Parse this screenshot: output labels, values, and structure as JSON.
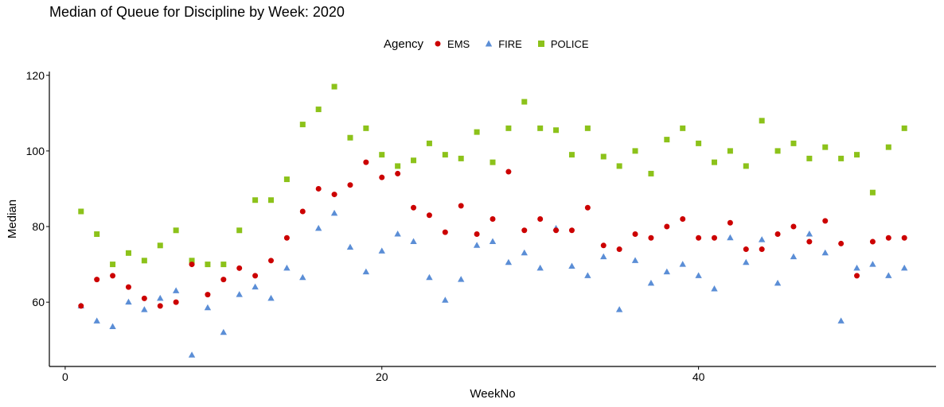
{
  "chart_data": {
    "type": "scatter",
    "title": "Median of Queue for Discipline by Week: 2020",
    "xlabel": "WeekNo",
    "ylabel": "Median",
    "xlim": [
      -1,
      55
    ],
    "ylim": [
      43,
      121
    ],
    "xticks": [
      0,
      20,
      40
    ],
    "yticks": [
      60,
      80,
      100,
      120
    ],
    "grid": false,
    "legend": {
      "title": "Agency",
      "placement": "top"
    },
    "series": [
      {
        "name": "EMS",
        "color": "#cc0000",
        "marker": "circle",
        "x": [
          1,
          2,
          3,
          4,
          5,
          6,
          7,
          8,
          9,
          10,
          11,
          12,
          13,
          14,
          15,
          16,
          17,
          18,
          19,
          20,
          21,
          22,
          23,
          24,
          25,
          26,
          27,
          28,
          29,
          30,
          31,
          32,
          33,
          34,
          35,
          36,
          37,
          38,
          39,
          40,
          41,
          42,
          43,
          44,
          45,
          46,
          47,
          48,
          49,
          50,
          51,
          52,
          53
        ],
        "y": [
          59,
          66,
          67,
          64,
          61,
          59,
          60,
          70,
          62,
          66,
          69,
          67,
          71,
          77,
          84,
          90,
          88.5,
          91,
          97,
          93,
          94,
          85,
          83,
          78.5,
          85.5,
          78,
          82,
          94.5,
          79,
          82,
          79,
          79,
          85,
          75,
          74,
          78,
          77,
          80,
          82,
          77,
          77,
          81,
          74,
          74,
          78,
          80,
          76,
          81.5,
          75.5,
          67,
          76,
          77,
          77
        ]
      },
      {
        "name": "FIRE",
        "color": "#5b8ed6",
        "marker": "triangle",
        "x": [
          1,
          2,
          3,
          4,
          5,
          6,
          7,
          8,
          9,
          10,
          11,
          12,
          13,
          14,
          15,
          16,
          17,
          18,
          19,
          20,
          21,
          22,
          23,
          24,
          25,
          26,
          27,
          28,
          29,
          30,
          31,
          32,
          33,
          34,
          35,
          36,
          37,
          38,
          39,
          40,
          41,
          42,
          43,
          44,
          45,
          46,
          47,
          48,
          49,
          50,
          51,
          52,
          53
        ],
        "y": [
          59,
          55,
          53.5,
          60,
          58,
          61,
          63,
          46,
          58.5,
          52,
          62,
          64,
          61,
          69,
          66.5,
          79.5,
          83.5,
          74.5,
          68,
          73.5,
          78,
          76,
          66.5,
          60.5,
          66,
          75,
          76,
          70.5,
          73,
          69,
          79.5,
          69.5,
          67,
          72,
          58,
          71,
          65,
          68,
          70,
          67,
          63.5,
          77,
          70.5,
          76.5,
          65,
          72,
          78,
          73,
          55,
          69,
          70,
          67,
          69
        ]
      },
      {
        "name": "POLICE",
        "color": "#8cc21a",
        "marker": "square",
        "x": [
          1,
          2,
          3,
          4,
          5,
          6,
          7,
          8,
          9,
          10,
          11,
          12,
          13,
          14,
          15,
          16,
          17,
          18,
          19,
          20,
          21,
          22,
          23,
          24,
          25,
          26,
          27,
          28,
          29,
          30,
          31,
          32,
          33,
          34,
          35,
          36,
          37,
          38,
          39,
          40,
          41,
          42,
          43,
          44,
          45,
          46,
          47,
          48,
          49,
          50,
          51,
          52,
          53
        ],
        "y": [
          84,
          78,
          70,
          73,
          71,
          75,
          79,
          71,
          70,
          70,
          79,
          87,
          87,
          92.5,
          107,
          111,
          117,
          103.5,
          106,
          99,
          96,
          97.5,
          102,
          99,
          98,
          105,
          97,
          106,
          113,
          106,
          105.5,
          99,
          106,
          98.5,
          96,
          100,
          94,
          103,
          106,
          102,
          97,
          100,
          96,
          108,
          100,
          102,
          98,
          101,
          98,
          99,
          89,
          101,
          106
        ]
      }
    ]
  }
}
